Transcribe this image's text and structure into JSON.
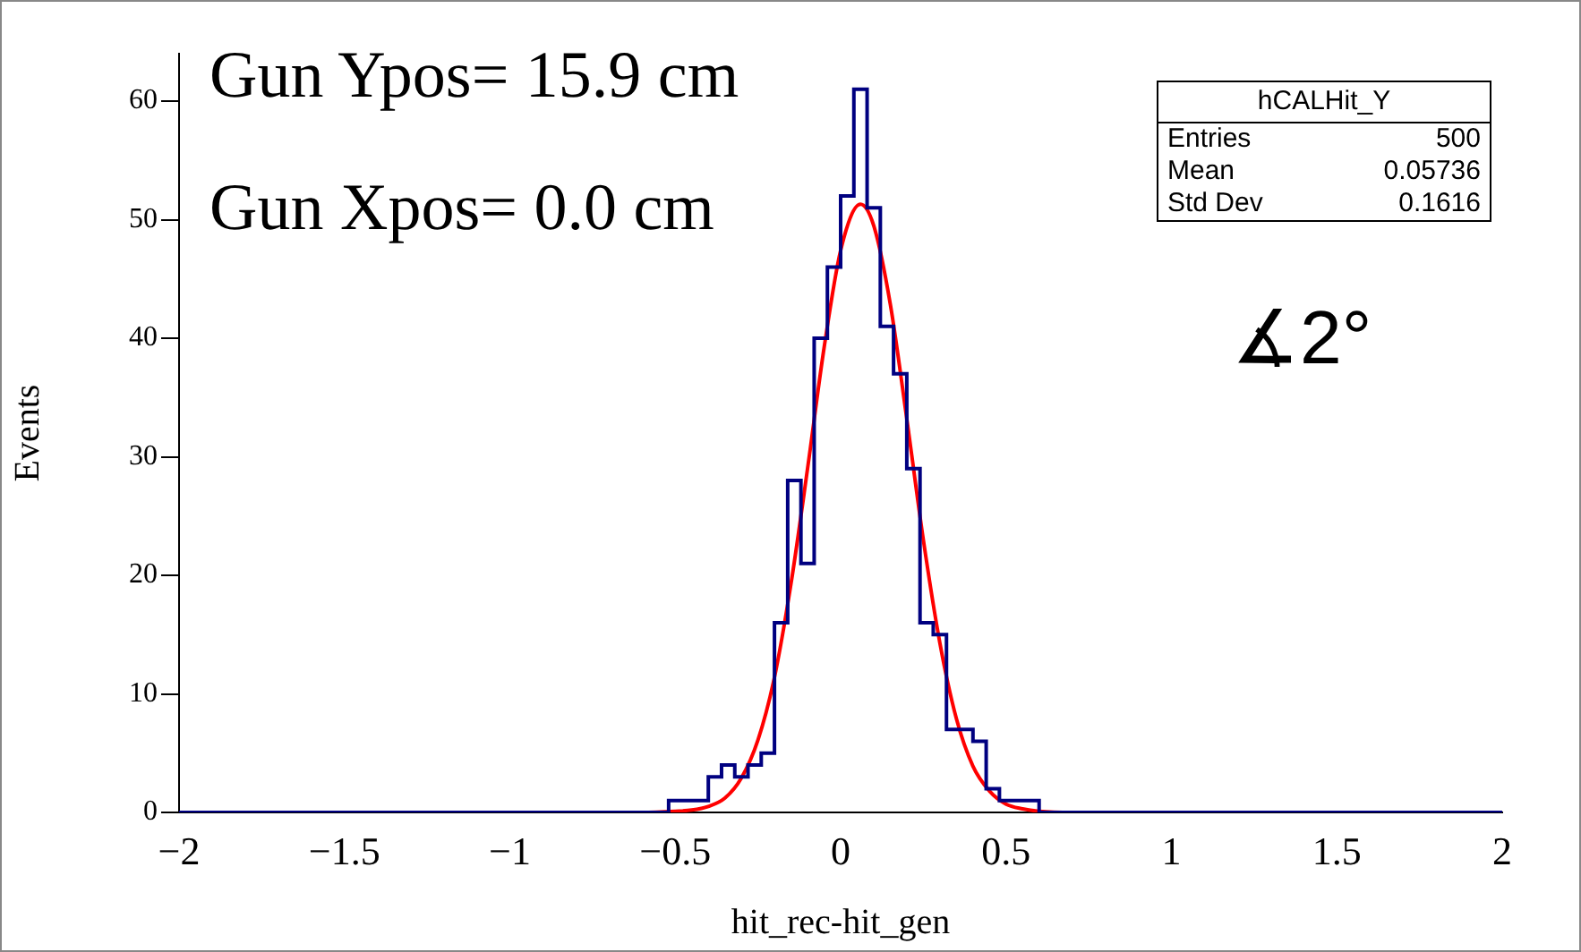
{
  "chart_data": {
    "type": "histogram",
    "xlabel": "hit_rec-hit_gen",
    "ylabel": "Events",
    "bins": [
      -2,
      -1.96,
      -1.92,
      -1.88,
      -1.84,
      -1.8,
      -1.76,
      -1.72,
      -1.68,
      -1.64,
      -1.6,
      -1.56,
      -1.52,
      -1.48,
      -1.44,
      -1.4,
      -1.36,
      -1.32,
      -1.28,
      -1.24,
      -1.2,
      -1.16,
      -1.12,
      -1.08,
      -1.04,
      -1,
      -0.96,
      -0.92,
      -0.88,
      -0.84,
      -0.8,
      -0.76,
      -0.72,
      -0.68,
      -0.64,
      -0.6,
      -0.56,
      -0.52,
      -0.48,
      -0.44,
      -0.4,
      -0.36,
      -0.32,
      -0.28,
      -0.24,
      -0.2,
      -0.16,
      -0.12,
      -0.08,
      -0.04,
      0,
      0.04,
      0.08,
      0.12,
      0.16,
      0.2,
      0.24,
      0.28,
      0.32,
      0.36,
      0.4,
      0.44,
      0.48,
      0.52,
      0.56,
      0.6,
      0.64,
      0.68,
      0.72,
      0.76,
      0.8,
      0.84,
      0.88,
      0.92,
      0.96,
      1,
      1.04,
      1.08,
      1.12,
      1.16,
      1.2,
      1.24,
      1.28,
      1.32,
      1.36,
      1.4,
      1.44,
      1.48,
      1.52,
      1.56,
      1.6,
      1.64,
      1.68,
      1.72,
      1.76,
      1.8,
      1.84,
      1.88,
      1.92,
      1.96,
      2
    ],
    "series": [
      {
        "color": "#000080",
        "values": [
          0,
          0,
          0,
          0,
          0,
          0,
          0,
          0,
          0,
          0,
          0,
          0,
          0,
          0,
          0,
          0,
          0,
          0,
          0,
          0,
          0,
          0,
          0,
          0,
          0,
          0,
          0,
          0,
          0,
          0,
          0,
          0,
          0,
          0,
          0,
          0,
          0,
          1,
          1,
          1,
          3,
          4,
          3,
          4,
          5,
          16,
          28,
          21,
          40,
          46,
          52,
          61,
          51,
          41,
          37,
          29,
          16,
          15,
          7,
          7,
          6,
          2,
          1,
          1,
          1,
          0,
          0,
          0,
          0,
          0,
          0,
          0,
          0,
          0,
          0,
          0,
          0,
          0,
          0,
          0,
          0,
          0,
          0,
          0,
          0,
          0,
          0,
          0,
          0,
          0,
          0,
          0,
          0,
          0,
          0,
          0,
          0,
          0,
          0,
          0
        ]
      },
      {
        "type": "line",
        "color": "#ff0000",
        "x": [
          -0.75,
          -0.6,
          -0.5,
          -0.45,
          -0.4,
          -0.35,
          -0.3,
          -0.25,
          -0.2,
          -0.15,
          -0.1,
          -0.05,
          0,
          0.06,
          0.1,
          0.15,
          0.2,
          0.25,
          0.3,
          0.35,
          0.4,
          0.45,
          0.5,
          0.55,
          0.6,
          0.7,
          0.87
        ],
        "values": [
          0,
          0,
          0.1,
          0.2,
          0.5,
          1.2,
          2.9,
          6.1,
          11.4,
          19.3,
          29.0,
          39.2,
          47.4,
          51.3,
          49.5,
          42.9,
          33.2,
          23.0,
          14.3,
          7.9,
          3.9,
          1.8,
          0.7,
          0.3,
          0.1,
          0,
          0
        ]
      }
    ],
    "xlim": [
      -2,
      2
    ],
    "xticks": [
      {
        "value": -2,
        "label": "−2"
      },
      {
        "value": -1.5,
        "label": "−1.5"
      },
      {
        "value": -1,
        "label": "−1"
      },
      {
        "value": -0.5,
        "label": "−0.5"
      },
      0,
      0.5,
      1,
      1.5,
      2
    ],
    "ylim": [
      0,
      64
    ],
    "yticks": [
      0,
      10,
      20,
      30,
      40,
      50,
      60
    ],
    "grid": false,
    "legend": false,
    "marker": "none",
    "annotations": [
      "Gun Ypos= 15.9 cm",
      "Gun Xpos= 0.0 cm",
      "∡2°",
      "hCALHit_Y",
      "Entries",
      "500",
      "Mean",
      "0.05736",
      "Std Dev",
      "0.1616"
    ]
  }
}
